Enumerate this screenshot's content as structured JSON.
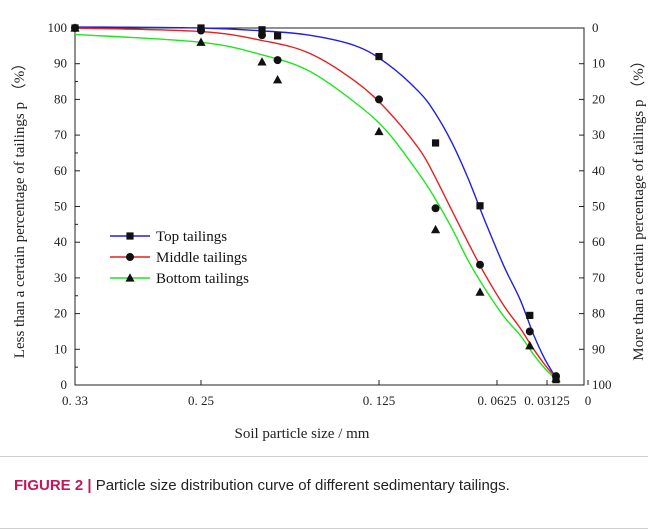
{
  "chart_data": {
    "type": "line",
    "x_ticks": [
      "0. 33",
      "0. 25",
      "0. 125",
      "0. 0625",
      "0. 03125",
      "0"
    ],
    "xlabel": "Soil particle size / mm",
    "ylabel": "Less than a certain percentage of tailings p （%）",
    "ylabel_right": "More than a certain percentage of tailings p （%）",
    "ylim": [
      0,
      100
    ],
    "y_ticks": [
      0,
      10,
      20,
      30,
      40,
      50,
      60,
      70,
      80,
      90,
      100
    ],
    "y_ticks_right": [
      100,
      90,
      80,
      70,
      60,
      50,
      40,
      30,
      20,
      10,
      0
    ],
    "legend_position": "center-left",
    "series": [
      {
        "name": "Top tailings",
        "color": "#1f1fe6",
        "marker": "square",
        "points": [
          {
            "x": 0.33,
            "y": 100
          },
          {
            "x": 0.25,
            "y": 100
          },
          {
            "x": 0.2,
            "y": 99.5
          },
          {
            "x": 0.19,
            "y": 97.8
          },
          {
            "x": 0.125,
            "y": 92
          },
          {
            "x": 0.09,
            "y": 67.8
          },
          {
            "x": 0.0625,
            "y": 50.2
          },
          {
            "x": 0.037,
            "y": 19.5
          },
          {
            "x": 0.02,
            "y": 1.5
          }
        ],
        "curve": [
          [
            0.33,
            100.3
          ],
          [
            0.25,
            100
          ],
          [
            0.2,
            99.2
          ],
          [
            0.17,
            98
          ],
          [
            0.14,
            95
          ],
          [
            0.12,
            90
          ],
          [
            0.1,
            82
          ],
          [
            0.09,
            76
          ],
          [
            0.08,
            68
          ],
          [
            0.07,
            58
          ],
          [
            0.06,
            46
          ],
          [
            0.05,
            33
          ],
          [
            0.042,
            24
          ],
          [
            0.035,
            14
          ],
          [
            0.028,
            7
          ],
          [
            0.02,
            2
          ]
        ]
      },
      {
        "name": "Middle tailings",
        "color": "#e61f1f",
        "marker": "circle",
        "points": [
          {
            "x": 0.33,
            "y": 100
          },
          {
            "x": 0.25,
            "y": 99.3
          },
          {
            "x": 0.2,
            "y": 98
          },
          {
            "x": 0.19,
            "y": 91
          },
          {
            "x": 0.125,
            "y": 80
          },
          {
            "x": 0.09,
            "y": 49.5
          },
          {
            "x": 0.0625,
            "y": 33.7
          },
          {
            "x": 0.037,
            "y": 15
          },
          {
            "x": 0.02,
            "y": 2.5
          }
        ],
        "curve": [
          [
            0.33,
            100
          ],
          [
            0.25,
            99
          ],
          [
            0.2,
            96.5
          ],
          [
            0.17,
            93
          ],
          [
            0.14,
            85
          ],
          [
            0.12,
            77
          ],
          [
            0.1,
            66
          ],
          [
            0.09,
            58
          ],
          [
            0.08,
            49
          ],
          [
            0.07,
            40
          ],
          [
            0.06,
            31
          ],
          [
            0.05,
            22
          ],
          [
            0.042,
            16
          ],
          [
            0.035,
            10
          ],
          [
            0.028,
            5.5
          ],
          [
            0.02,
            2
          ]
        ]
      },
      {
        "name": "Bottom tailings",
        "color": "#1fe61f",
        "marker": "triangle",
        "points": [
          {
            "x": 0.33,
            "y": 100
          },
          {
            "x": 0.25,
            "y": 96
          },
          {
            "x": 0.2,
            "y": 90.5
          },
          {
            "x": 0.19,
            "y": 85.5
          },
          {
            "x": 0.125,
            "y": 71
          },
          {
            "x": 0.09,
            "y": 43.5
          },
          {
            "x": 0.0625,
            "y": 26
          },
          {
            "x": 0.037,
            "y": 11
          },
          {
            "x": 0.02,
            "y": 1.8
          }
        ],
        "curve": [
          [
            0.33,
            98.2
          ],
          [
            0.25,
            96
          ],
          [
            0.2,
            92.5
          ],
          [
            0.17,
            88
          ],
          [
            0.14,
            79
          ],
          [
            0.12,
            71
          ],
          [
            0.1,
            59
          ],
          [
            0.09,
            52
          ],
          [
            0.08,
            44
          ],
          [
            0.07,
            35
          ],
          [
            0.06,
            27
          ],
          [
            0.05,
            19
          ],
          [
            0.042,
            14
          ],
          [
            0.035,
            8.5
          ],
          [
            0.028,
            4.5
          ],
          [
            0.02,
            1.5
          ]
        ]
      }
    ]
  },
  "caption": {
    "label": "FIGURE 2 |",
    "text": " Particle size distribution curve of different sedimentary tailings."
  }
}
